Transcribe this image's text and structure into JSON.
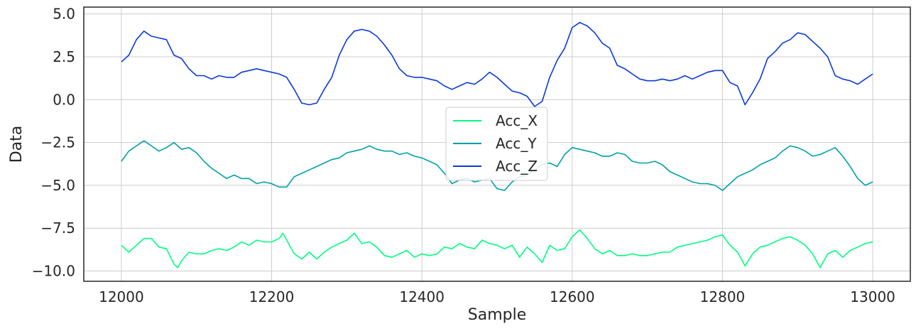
{
  "chart_data": {
    "type": "line",
    "title": "",
    "xlabel": "Sample",
    "ylabel": "Data",
    "xlim": [
      11950,
      13050
    ],
    "ylim": [
      -10.6,
      5.4
    ],
    "xticks": [
      12000,
      12200,
      12400,
      12600,
      12800,
      13000
    ],
    "xtick_labels": [
      "12000",
      "12200",
      "12400",
      "12600",
      "12800",
      "13000"
    ],
    "yticks": [
      5.0,
      2.5,
      0.0,
      -2.5,
      -5.0,
      -7.5,
      -10.0
    ],
    "ytick_labels": [
      "5.0",
      "2.5",
      "0.0",
      "−2.5",
      "−5.0",
      "−7.5",
      "−10.0"
    ],
    "grid": true,
    "legend_position": "center",
    "series": [
      {
        "name": "Acc_X",
        "color": "#00ff80",
        "x": [
          12000,
          12010,
          12020,
          12030,
          12040,
          12050,
          12060,
          12070,
          12075,
          12080,
          12090,
          12100,
          12110,
          12120,
          12130,
          12140,
          12150,
          12160,
          12170,
          12180,
          12190,
          12200,
          12210,
          12215,
          12220,
          12230,
          12240,
          12250,
          12260,
          12270,
          12280,
          12290,
          12300,
          12310,
          12320,
          12330,
          12340,
          12350,
          12360,
          12370,
          12380,
          12390,
          12400,
          12410,
          12420,
          12430,
          12440,
          12450,
          12460,
          12470,
          12480,
          12490,
          12500,
          12510,
          12520,
          12530,
          12540,
          12550,
          12560,
          12570,
          12580,
          12590,
          12600,
          12610,
          12620,
          12630,
          12640,
          12650,
          12660,
          12670,
          12680,
          12690,
          12700,
          12710,
          12720,
          12730,
          12740,
          12750,
          12760,
          12770,
          12780,
          12790,
          12800,
          12810,
          12820,
          12830,
          12840,
          12850,
          12860,
          12870,
          12880,
          12890,
          12900,
          12910,
          12920,
          12930,
          12940,
          12950,
          12960,
          12970,
          12980,
          12990,
          13000
        ],
        "y": [
          -8.5,
          -8.9,
          -8.5,
          -8.1,
          -8.1,
          -8.6,
          -8.7,
          -9.6,
          -9.8,
          -9.4,
          -8.9,
          -9.0,
          -9.0,
          -8.8,
          -8.7,
          -8.8,
          -8.6,
          -8.3,
          -8.5,
          -8.2,
          -8.3,
          -8.3,
          -8.1,
          -7.8,
          -8.2,
          -9.0,
          -9.3,
          -8.9,
          -9.3,
          -8.9,
          -8.6,
          -8.4,
          -8.2,
          -7.8,
          -8.4,
          -8.3,
          -8.6,
          -9.1,
          -9.2,
          -9.0,
          -8.8,
          -9.2,
          -9.0,
          -9.1,
          -9.0,
          -8.6,
          -8.7,
          -8.4,
          -8.6,
          -8.7,
          -8.2,
          -8.4,
          -8.5,
          -8.7,
          -8.5,
          -9.2,
          -8.6,
          -9.0,
          -9.5,
          -8.5,
          -8.8,
          -8.7,
          -8.0,
          -7.6,
          -8.1,
          -8.7,
          -9.0,
          -8.8,
          -9.1,
          -9.1,
          -9.0,
          -9.1,
          -9.1,
          -9.0,
          -8.9,
          -8.9,
          -8.6,
          -8.5,
          -8.4,
          -8.3,
          -8.2,
          -8.0,
          -7.9,
          -8.5,
          -8.9,
          -9.7,
          -9.0,
          -8.6,
          -8.5,
          -8.3,
          -8.1,
          -8.0,
          -8.2,
          -8.5,
          -9.0,
          -9.8,
          -9.0,
          -8.8,
          -9.2,
          -8.8,
          -8.6,
          -8.4,
          -8.3
        ]
      },
      {
        "name": "Acc_Y",
        "color": "#00a0a8",
        "x": [
          12000,
          12010,
          12020,
          12030,
          12040,
          12050,
          12060,
          12070,
          12080,
          12090,
          12100,
          12110,
          12120,
          12130,
          12140,
          12150,
          12160,
          12170,
          12180,
          12190,
          12200,
          12210,
          12220,
          12230,
          12240,
          12250,
          12260,
          12270,
          12280,
          12290,
          12300,
          12310,
          12320,
          12330,
          12340,
          12350,
          12360,
          12370,
          12380,
          12390,
          12400,
          12410,
          12420,
          12430,
          12440,
          12450,
          12460,
          12470,
          12480,
          12490,
          12500,
          12510,
          12520,
          12530,
          12540,
          12550,
          12560,
          12570,
          12580,
          12590,
          12600,
          12610,
          12620,
          12630,
          12640,
          12650,
          12660,
          12670,
          12680,
          12690,
          12700,
          12710,
          12720,
          12730,
          12740,
          12750,
          12760,
          12770,
          12780,
          12790,
          12800,
          12810,
          12820,
          12830,
          12840,
          12850,
          12860,
          12870,
          12880,
          12890,
          12900,
          12910,
          12920,
          12930,
          12940,
          12950,
          12960,
          12970,
          12980,
          12990,
          13000
        ],
        "y": [
          -3.6,
          -3.0,
          -2.7,
          -2.4,
          -2.7,
          -3.0,
          -2.8,
          -2.5,
          -2.9,
          -2.8,
          -3.1,
          -3.6,
          -4.0,
          -4.3,
          -4.6,
          -4.4,
          -4.6,
          -4.6,
          -4.9,
          -4.8,
          -4.9,
          -5.1,
          -5.1,
          -4.5,
          -4.3,
          -4.1,
          -3.9,
          -3.7,
          -3.5,
          -3.4,
          -3.1,
          -3.0,
          -2.9,
          -2.7,
          -2.9,
          -3.0,
          -3.0,
          -3.2,
          -3.1,
          -3.3,
          -3.4,
          -3.6,
          -3.8,
          -4.3,
          -4.9,
          -4.7,
          -4.6,
          -4.8,
          -4.7,
          -4.6,
          -5.2,
          -5.3,
          -4.8,
          -4.5,
          -4.4,
          -4.1,
          -3.8,
          -3.7,
          -3.9,
          -3.2,
          -2.8,
          -2.9,
          -3.0,
          -3.1,
          -3.3,
          -3.3,
          -3.1,
          -3.2,
          -3.6,
          -3.7,
          -3.7,
          -3.6,
          -3.8,
          -4.2,
          -4.4,
          -4.6,
          -4.8,
          -4.9,
          -4.9,
          -5.0,
          -5.3,
          -4.9,
          -4.5,
          -4.3,
          -4.1,
          -3.8,
          -3.6,
          -3.4,
          -3.0,
          -2.7,
          -2.8,
          -3.0,
          -3.3,
          -3.2,
          -3.0,
          -2.8,
          -3.3,
          -3.9,
          -4.6,
          -5.0,
          -4.8
        ]
      },
      {
        "name": "Acc_Z",
        "color": "#0a3adc",
        "x": [
          12000,
          12010,
          12020,
          12030,
          12040,
          12050,
          12060,
          12070,
          12080,
          12090,
          12100,
          12110,
          12120,
          12130,
          12140,
          12150,
          12160,
          12170,
          12180,
          12190,
          12200,
          12210,
          12220,
          12230,
          12240,
          12250,
          12260,
          12270,
          12280,
          12290,
          12300,
          12310,
          12320,
          12330,
          12340,
          12350,
          12360,
          12370,
          12380,
          12390,
          12400,
          12410,
          12420,
          12430,
          12440,
          12450,
          12460,
          12470,
          12480,
          12490,
          12500,
          12510,
          12520,
          12530,
          12540,
          12550,
          12560,
          12570,
          12580,
          12590,
          12600,
          12610,
          12620,
          12630,
          12640,
          12650,
          12660,
          12670,
          12680,
          12690,
          12700,
          12710,
          12720,
          12730,
          12740,
          12750,
          12760,
          12770,
          12780,
          12790,
          12800,
          12810,
          12820,
          12830,
          12840,
          12850,
          12860,
          12870,
          12880,
          12890,
          12900,
          12910,
          12920,
          12930,
          12940,
          12950,
          12960,
          12970,
          12980,
          12990,
          13000
        ],
        "y": [
          2.2,
          2.6,
          3.5,
          4.0,
          3.7,
          3.6,
          3.5,
          2.6,
          2.4,
          1.8,
          1.4,
          1.4,
          1.2,
          1.4,
          1.3,
          1.3,
          1.6,
          1.7,
          1.8,
          1.7,
          1.6,
          1.5,
          1.3,
          0.6,
          -0.2,
          -0.3,
          -0.2,
          0.6,
          1.3,
          2.6,
          3.5,
          4.0,
          4.1,
          4.0,
          3.7,
          3.2,
          2.6,
          1.8,
          1.4,
          1.3,
          1.3,
          1.2,
          1.1,
          0.8,
          0.6,
          0.8,
          1.0,
          0.9,
          1.2,
          1.6,
          1.3,
          0.9,
          0.5,
          0.4,
          0.2,
          -0.4,
          -0.1,
          1.3,
          2.3,
          3.0,
          4.2,
          4.5,
          4.3,
          3.9,
          3.3,
          3.0,
          2.0,
          1.8,
          1.5,
          1.2,
          1.1,
          1.1,
          1.2,
          1.1,
          1.2,
          1.4,
          1.2,
          1.4,
          1.6,
          1.7,
          1.7,
          1.0,
          0.8,
          -0.3,
          0.4,
          1.2,
          2.4,
          2.8,
          3.3,
          3.5,
          3.9,
          3.8,
          3.4,
          3.0,
          2.5,
          1.4,
          1.2,
          1.1,
          0.9,
          1.2,
          1.5
        ]
      }
    ]
  }
}
